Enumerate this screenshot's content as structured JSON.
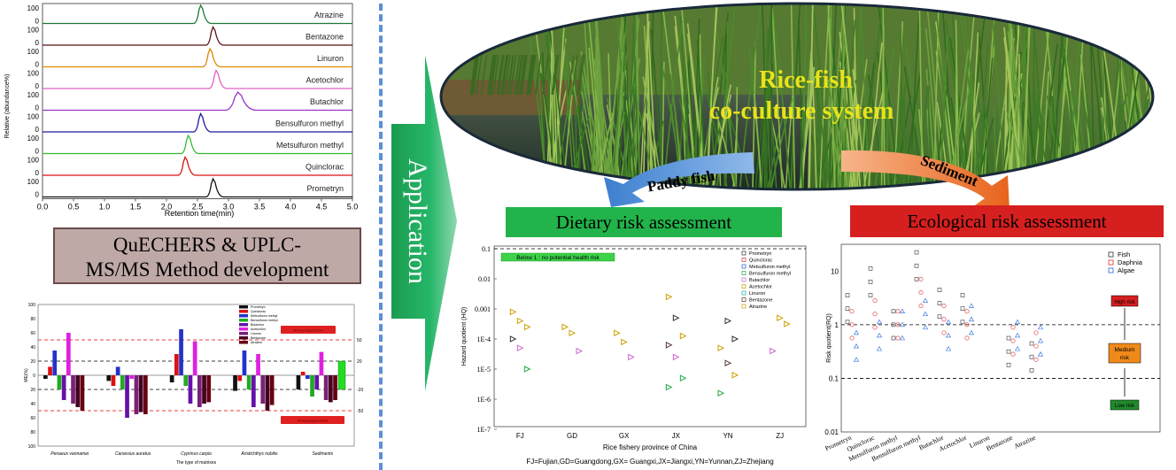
{
  "chromatogram": {
    "ylabel": "Relative (abundance%)",
    "xlabel": "Retention time(min)",
    "xticks": [
      "0.0",
      "0.5",
      "1.0",
      "1.5",
      "2.0",
      "2.5",
      "3.0",
      "3.5",
      "4.0",
      "4.5",
      "5.0"
    ],
    "traces": [
      {
        "name": "Atrazine",
        "color": "#1a7a3a",
        "peak": 2.55,
        "top": "100",
        "base": "0"
      },
      {
        "name": "Bentazone",
        "color": "#5a1010",
        "peak": 2.75,
        "top": "100",
        "base": "0"
      },
      {
        "name": "Linuron",
        "color": "#e08a00",
        "peak": 2.7,
        "top": "100",
        "base": "0"
      },
      {
        "name": "Acetochlor",
        "color": "#e060c0",
        "peak": 2.8,
        "top": "100",
        "base": "0"
      },
      {
        "name": "Butachlor",
        "color": "#9933cc",
        "peak": 3.15,
        "top": "100",
        "base": "0"
      },
      {
        "name": "Bensulfuron methyl",
        "color": "#1a1aa0",
        "peak": 2.55,
        "top": "100",
        "base": "0"
      },
      {
        "name": "Metsulfuron methyl",
        "color": "#33bb33",
        "peak": 2.35,
        "top": "100",
        "base": "0"
      },
      {
        "name": "Quinclorac",
        "color": "#dd1111",
        "peak": 2.3,
        "top": "100",
        "base": "0"
      },
      {
        "name": "Prometryn",
        "color": "#111111",
        "peak": 2.75,
        "top": "100",
        "base": "0"
      }
    ]
  },
  "method_box": {
    "line1": "QuECHERS &  UPLC-",
    "line2": "MS/MS Method development"
  },
  "matrix_chart": {
    "ylabel": "ME(%)",
    "xlabel": "The type of matrixes",
    "yticks": [
      "100",
      "80",
      "60",
      "40",
      "20",
      "0",
      "20",
      "40",
      "60",
      "80",
      "100"
    ],
    "categories": [
      "Penaeus vannamei",
      "Carassius auratus",
      "Cyprinus carpio",
      "Aristichthys nobilis",
      "Sediments"
    ],
    "legend": [
      "Prometryn",
      "Quinclorac",
      "Metsulfuron methyl",
      "Bensulfuron methyl",
      "Butachlor",
      "Acetochlor",
      "Linuron",
      "Bentazone",
      "Atrazine"
    ],
    "colors": [
      "#111111",
      "#dd1111",
      "#2233cc",
      "#22aa22",
      "#6611aa",
      "#e020e0",
      "#772277",
      "#440022",
      "#660011"
    ],
    "series_values": [
      [
        -5,
        -8,
        -10,
        -22,
        -20
      ],
      [
        12,
        -15,
        30,
        -8,
        5
      ],
      [
        35,
        12,
        65,
        35,
        -5
      ],
      [
        -20,
        -20,
        -15,
        -20,
        -30
      ],
      [
        -35,
        -60,
        -40,
        -45,
        -20
      ],
      [
        60,
        -5,
        48,
        30,
        33
      ],
      [
        -40,
        -55,
        -45,
        -40,
        -35
      ],
      [
        -45,
        -52,
        -40,
        -50,
        -38
      ],
      [
        -50,
        -55,
        -38,
        -42,
        -35
      ]
    ],
    "right_labels": [
      "50",
      "20",
      "-20",
      "-50"
    ],
    "red_tag_top": "Strong suppression",
    "red_tag_bottom": "Strong suppression"
  },
  "application_label": "Application",
  "photo": {
    "line1": "Rice-fish",
    "line2": "co-culture system"
  },
  "arrow_left": "Paddy fish",
  "arrow_right": "Sediment",
  "dietary": {
    "title": "Dietary risk assessment",
    "ylabel": "Hazard quotient (HQ)",
    "xlabel": "Rice fishery province of China",
    "footnote": "FJ=Fujian,GD=Guangdong,GX= Guangxi,JX=Jiangxi,YN=Yunnan,ZJ=Zhejiang",
    "note": "Below 1 : no potential health risk",
    "yticks": [
      "0.1",
      "0.01",
      "0.001",
      "1E-4",
      "1E-5",
      "1E-6",
      "1E-7"
    ],
    "categories": [
      "FJ",
      "GD",
      "GX",
      "JX",
      "YN",
      "ZJ"
    ],
    "legend": [
      "Prometryn",
      "Quinclorac",
      "Metsulfuron methyl",
      "Bensulfuron methyl",
      "Butachlor",
      "Acetochlor",
      "Linuron",
      "Bentazone",
      "Atrazine"
    ]
  },
  "ecological": {
    "title": "Ecological risk assessment",
    "ylabel": "Risk quotient(RQ)",
    "yticks": [
      "10",
      "1",
      "0.1",
      "0.01"
    ],
    "categories": [
      "Prometryn",
      "Quinclorac",
      "Metsulfuron methyl",
      "Bensulfuron methyl",
      "Butachlor",
      "Acetochlor",
      "Linuron",
      "Bentazone",
      "Atrazine"
    ],
    "legend": [
      "Fish",
      "Daphnia",
      "Algae"
    ],
    "high": "High risk",
    "medium": "Medium\nrisk",
    "low": "Low risk"
  }
}
